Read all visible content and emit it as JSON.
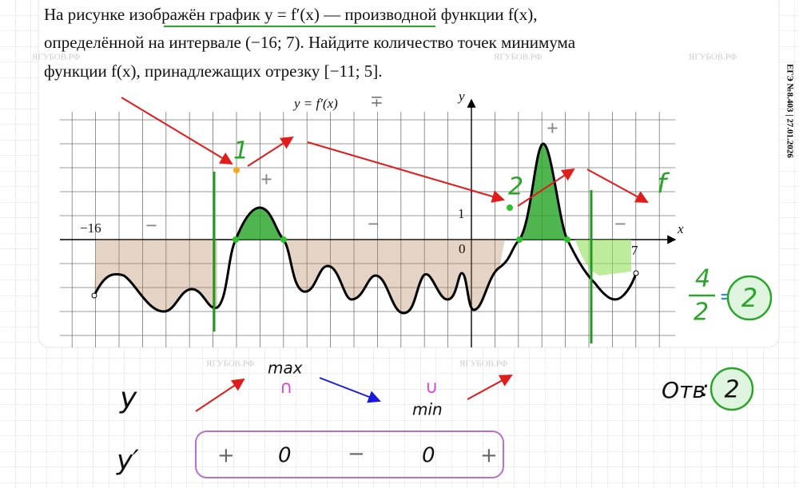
{
  "problem": {
    "lines": [
      "На рисунке изображён график y = f′(x) — производной функции f(x),",
      "определённой на интервале (−16; 7). Найдите количество точек минимума",
      "функции f(x), принадлежащих отрезку [−11; 5]."
    ]
  },
  "side_label": "ЕГЭ №8.403 | 27.01.2026",
  "watermark": "ЯГУБОВ.РФ",
  "graph": {
    "function_label": "y = f′(x)",
    "function_mark": "∓",
    "y_axis": "y",
    "x_axis": "x",
    "x_start": "−16",
    "origin": "0",
    "unit": "1",
    "x_end": "7",
    "signs": [
      "−",
      "+",
      "−",
      "+",
      "−"
    ]
  },
  "annotations": {
    "point_1": "1",
    "point_2": "2",
    "f": "f",
    "numerator": "4",
    "denominator": "2",
    "equals": "=",
    "result": "2"
  },
  "scheme": {
    "y": "y",
    "y_prime": "y′",
    "max": "max",
    "max_symbol": "∩",
    "min": "min",
    "min_symbol": "∪",
    "signs": [
      "+",
      "0",
      "−",
      "0",
      "+"
    ]
  },
  "answer": {
    "label": "Отв",
    "colon": ":",
    "value": "2"
  }
}
